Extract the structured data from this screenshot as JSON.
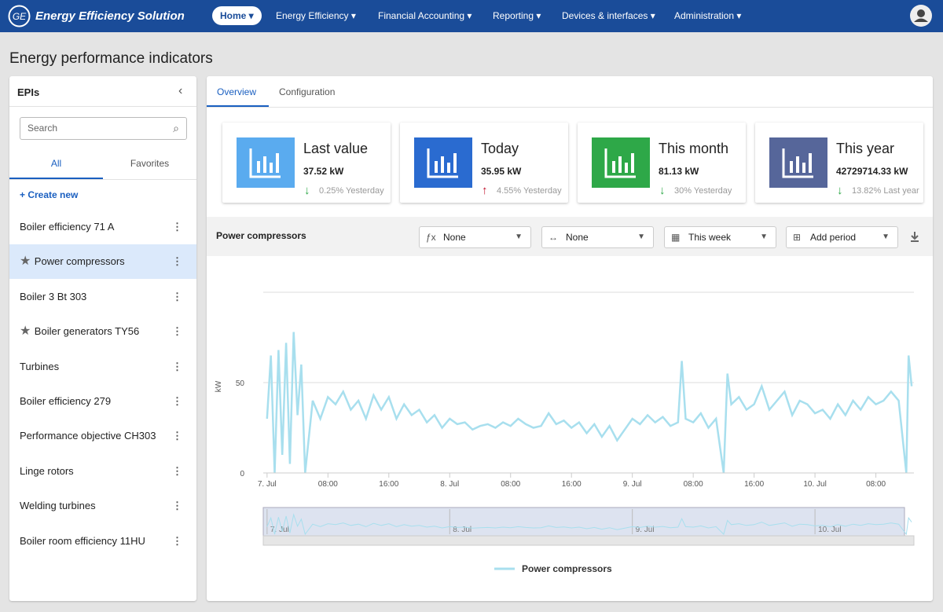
{
  "app_title": "Energy Efficiency Solution",
  "nav": [
    "Home",
    "Energy Efficiency",
    "Financial Accounting",
    "Reporting",
    "Devices & interfaces",
    "Administration"
  ],
  "page_title": "Energy performance indicators",
  "sidebar": {
    "title": "EPIs",
    "search": "Search",
    "tabs": [
      "All",
      "Favorites"
    ],
    "create": "Create new",
    "items": [
      {
        "label": "Boiler efficiency 71 A",
        "favorite": false,
        "selected": false
      },
      {
        "label": "Power compressors",
        "favorite": true,
        "selected": true
      },
      {
        "label": "Boiler 3 Bt 303",
        "favorite": false,
        "selected": false
      },
      {
        "label": "Boiler generators TY56",
        "favorite": true,
        "selected": false
      },
      {
        "label": "Turbines",
        "favorite": false,
        "selected": false
      },
      {
        "label": "Boiler efficiency 279",
        "favorite": false,
        "selected": false
      },
      {
        "label": "Performance objective CH303",
        "favorite": false,
        "selected": false
      },
      {
        "label": "Linge rotors",
        "favorite": false,
        "selected": false
      },
      {
        "label": "Welding turbines",
        "favorite": false,
        "selected": false
      },
      {
        "label": "Boiler room efficiency 11HU",
        "favorite": false,
        "selected": false
      }
    ]
  },
  "tabs": [
    "Overview",
    "Configuration"
  ],
  "kpis": [
    {
      "title": "Last value",
      "value": "37.52 kW",
      "change": "0.25% Yesterday",
      "trend": "down",
      "color": "#5aabef"
    },
    {
      "title": "Today",
      "value": "35.95 kW",
      "change": "4.55% Yesterday",
      "trend": "up",
      "color": "#2a6bd0"
    },
    {
      "title": "This month",
      "value": "81.13 kW",
      "change": "30% Yesterday",
      "trend": "down",
      "color": "#2ea848"
    },
    {
      "title": "This year",
      "value": "42729714.33 kW",
      "change": "13.82% Last year",
      "trend": "down",
      "color": "#56669a"
    }
  ],
  "panel": {
    "title": "Power compressors",
    "filters": [
      "None",
      "None",
      "This week",
      "Add period"
    ]
  },
  "chart_data": {
    "type": "line",
    "y_label": "kW",
    "x": [
      0,
      0.5,
      1,
      1.5,
      2,
      2.5,
      3,
      3.5,
      4,
      4.5,
      5,
      6,
      7,
      8,
      9,
      10,
      11,
      12,
      13,
      14,
      15,
      16,
      17,
      18,
      19,
      20,
      21,
      22,
      23,
      24,
      25,
      26,
      27,
      28,
      29,
      30,
      31,
      32,
      33,
      34,
      35,
      36,
      37,
      38,
      39,
      40,
      41,
      42,
      43,
      44,
      45,
      46,
      47,
      48,
      49,
      50,
      51,
      52,
      53,
      54,
      54.5,
      55,
      56,
      57,
      58,
      59,
      60,
      60.5,
      61,
      62,
      63,
      64,
      65,
      66,
      67,
      68,
      69,
      70,
      71,
      72,
      73,
      74,
      75,
      76,
      77,
      78,
      79,
      80,
      81,
      82,
      83,
      84,
      84.3,
      84.7
    ],
    "series": [
      {
        "name": "Power compressors",
        "color": "#a8dfee",
        "values": [
          30,
          65,
          0,
          68,
          10,
          72,
          5,
          78,
          32,
          60,
          0,
          40,
          30,
          42,
          38,
          45,
          35,
          40,
          30,
          43,
          35,
          42,
          30,
          38,
          32,
          35,
          28,
          32,
          25,
          30,
          27,
          28,
          24,
          26,
          27,
          25,
          28,
          26,
          30,
          27,
          25,
          26,
          33,
          27,
          29,
          25,
          28,
          22,
          27,
          20,
          26,
          18,
          24,
          30,
          27,
          32,
          28,
          31,
          26,
          28,
          62,
          30,
          28,
          33,
          25,
          30,
          0,
          55,
          38,
          42,
          35,
          38,
          48,
          35,
          40,
          45,
          32,
          40,
          38,
          33,
          35,
          30,
          38,
          32,
          40,
          35,
          42,
          38,
          40,
          45,
          40,
          0,
          65,
          48
        ]
      }
    ],
    "xlim": [
      -0.5,
      85
    ],
    "ylim": [
      0,
      100
    ],
    "yticks": [
      0,
      50
    ],
    "xticks": [
      {
        "value": 0,
        "label": "7. Jul"
      },
      {
        "value": 8,
        "label": "08:00"
      },
      {
        "value": 16,
        "label": "16:00"
      },
      {
        "value": 24,
        "label": "8. Jul"
      },
      {
        "value": 32,
        "label": "08:00"
      },
      {
        "value": 40,
        "label": "16:00"
      },
      {
        "value": 48,
        "label": "9. Jul"
      },
      {
        "value": 56,
        "label": "08:00"
      },
      {
        "value": 64,
        "label": "16:00"
      },
      {
        "value": 72,
        "label": "10. Jul"
      },
      {
        "value": 80,
        "label": "08:00"
      }
    ],
    "grid": true
  }
}
